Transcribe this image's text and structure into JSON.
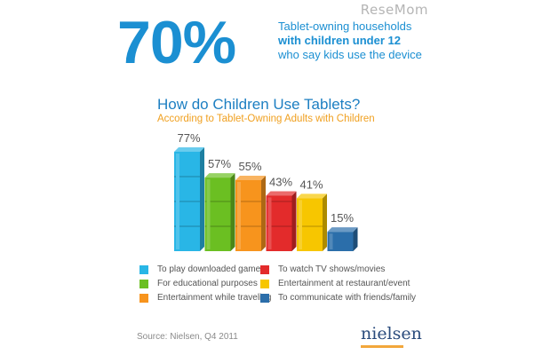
{
  "watermark": "ReseMom",
  "header": {
    "big_stat": "70%",
    "line1": "Tablet-owning households",
    "line2": "with children under 12",
    "line3": "who say kids use the device"
  },
  "chart_data": {
    "type": "bar",
    "title": "How do Children Use Tablets?",
    "subtitle": "According to Tablet-Owning Adults with Children",
    "categories": [
      "To play downloaded games",
      "For educational purposes",
      "Entertainment while traveling",
      "To watch TV shows/movies",
      "Entertainment at restaurant/event",
      "To communicate with friends/family"
    ],
    "values": [
      77,
      57,
      55,
      43,
      41,
      15
    ],
    "data_labels": [
      "77%",
      "57%",
      "55%",
      "43%",
      "41%",
      "15%"
    ],
    "colors": [
      "#29b6e6",
      "#6bbf22",
      "#f7941d",
      "#e32b2b",
      "#f7c600",
      "#2b6eaa"
    ],
    "ylim": [
      0,
      100
    ],
    "legend_position": "bottom",
    "grid": false
  },
  "footer": {
    "source": "Source: Nielsen, Q4 2011",
    "logo": "nielsen"
  }
}
